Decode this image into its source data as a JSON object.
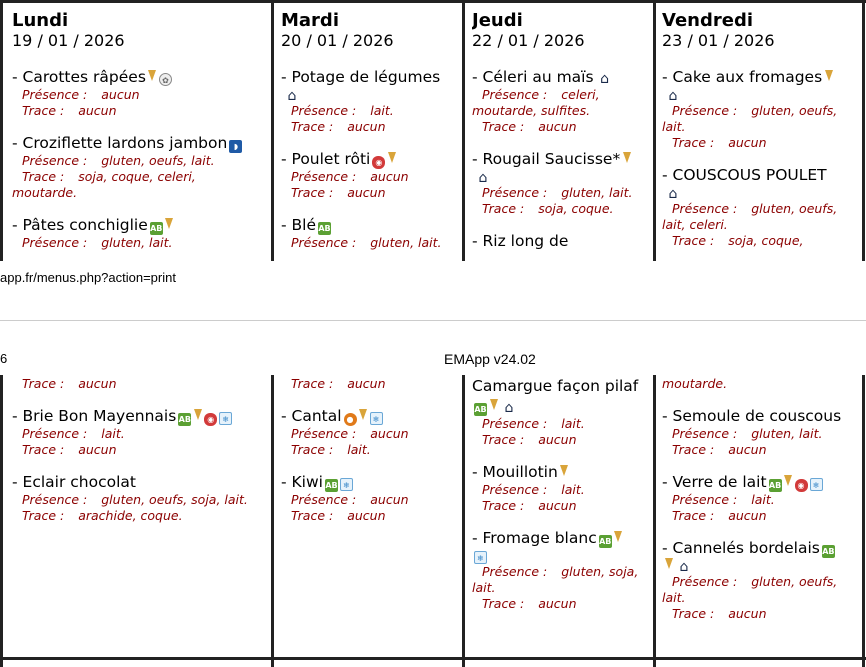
{
  "print_url": "app.fr/menus.php?action=print",
  "header2": {
    "left": "6",
    "center": "EMApp v24.02"
  },
  "page1": {
    "columns": [
      {
        "day": "Lundi",
        "date": "19 / 01 / 2026",
        "dishes": [
          {
            "name": "- Carottes râpées",
            "icons": [
              "cone",
              "gear"
            ],
            "presence": "aucun",
            "trace": "aucun"
          },
          {
            "name": "- Croziflette lardons jambon",
            "icons": [
              "shield"
            ],
            "presence": "gluten, oeufs, lait.",
            "trace": "soja, coque, celeri,",
            "trace_cont": "moutarde."
          },
          {
            "name": "- Pâtes conchiglie",
            "icons": [
              "bio",
              "cone"
            ],
            "presence": "gluten, lait."
          }
        ]
      },
      {
        "day": "Mardi",
        "date": "20 / 01 / 2026",
        "dishes": [
          {
            "name": "- Potage de légumes",
            "icons_line": [
              "house"
            ],
            "presence": "lait.",
            "trace": "aucun"
          },
          {
            "name": "- Poulet rôti",
            "icons": [
              "red",
              "cone"
            ],
            "presence": "aucun",
            "trace": "aucun"
          },
          {
            "name": "- Blé",
            "icons": [
              "bio"
            ],
            "presence": "gluten, lait."
          }
        ]
      },
      {
        "day": "Jeudi",
        "date": "22 / 01 / 2026",
        "dishes": [
          {
            "name": "- Céleri au maïs",
            "icons": [
              "house"
            ],
            "presence": "celeri,",
            "presence_cont": "moutarde, sulfites.",
            "trace": "aucun"
          },
          {
            "name": "- Rougail Saucisse*",
            "icons": [
              "cone"
            ],
            "icons_line": [
              "house"
            ],
            "presence": "gluten, lait.",
            "trace": "soja, coque."
          },
          {
            "name": "- Riz long de"
          }
        ]
      },
      {
        "day": "Vendredi",
        "date": "23 / 01 / 2026",
        "dishes": [
          {
            "name": "- Cake aux fromages",
            "icons": [
              "cone"
            ],
            "icons_line": [
              "house"
            ],
            "presence": "gluten, oeufs,",
            "presence_cont": "lait.",
            "trace": "aucun"
          },
          {
            "name": "- COUSCOUS POULET",
            "icons_line": [
              "house"
            ],
            "presence": "gluten, oeufs,",
            "presence_cont": "lait, celeri.",
            "trace": "soja, coque,"
          }
        ]
      }
    ]
  },
  "page2": {
    "columns": [
      {
        "top_trace": "aucun",
        "dishes": [
          {
            "name": "- Brie Bon Mayennais",
            "icons": [
              "bio",
              "cone",
              "red",
              "drop"
            ],
            "presence": "lait.",
            "trace": "aucun"
          },
          {
            "name": "- Eclair chocolat",
            "presence": "gluten, oeufs, soja, lait.",
            "trace": "arachide, coque."
          }
        ]
      },
      {
        "top_trace": "aucun",
        "dishes": [
          {
            "name": "- Cantal",
            "icons": [
              "medal",
              "cone",
              "drop"
            ],
            "presence": "aucun",
            "trace": "lait."
          },
          {
            "name": "- Kiwi",
            "icons": [
              "bio",
              "drop"
            ],
            "presence": "aucun",
            "trace": "aucun"
          }
        ]
      },
      {
        "top_line": "Camargue façon pilaf",
        "top_icons": [
          "bio",
          "cone",
          "house"
        ],
        "top_presence": "lait.",
        "top_trace": "aucun",
        "dishes": [
          {
            "name": "- Mouillotin",
            "icons": [
              "cone"
            ],
            "presence": "lait.",
            "trace": "aucun"
          },
          {
            "name": "- Fromage blanc",
            "icons": [
              "bio",
              "cone"
            ],
            "icons_line": [
              "drop"
            ],
            "presence": "gluten, soja,",
            "presence_cont": "lait.",
            "trace": "aucun"
          }
        ]
      },
      {
        "top_text": "moutarde.",
        "dishes": [
          {
            "name": "- Semoule de couscous",
            "presence": "gluten, lait.",
            "trace": "aucun"
          },
          {
            "name": "- Verre de lait",
            "icons": [
              "bio",
              "cone",
              "red",
              "drop"
            ],
            "presence": "lait.",
            "trace": "aucun"
          },
          {
            "name": "- Cannelés bordelais",
            "icons": [
              "bio"
            ],
            "icons_line": [
              "cone",
              "house"
            ],
            "presence": "gluten, oeufs,",
            "presence_cont": "lait.",
            "trace": "aucun"
          }
        ]
      }
    ]
  },
  "labels": {
    "presence": "Présence :",
    "trace": "Trace :"
  },
  "icon_names": {
    "bio": "AB",
    "cone": "",
    "house": "⌂",
    "shield": "◗",
    "drop": "❄",
    "red": "◉",
    "gear": "✿",
    "medal": "●"
  }
}
